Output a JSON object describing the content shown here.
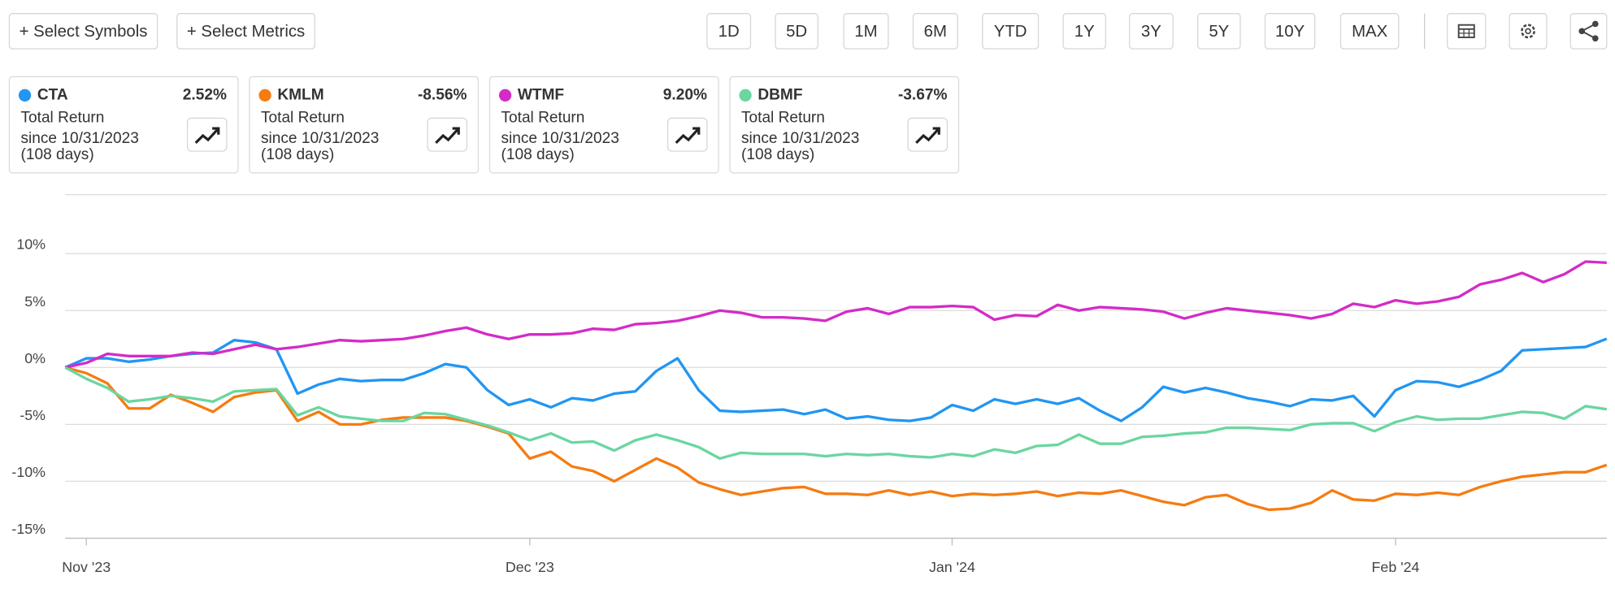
{
  "toolbar": {
    "select_symbols": "+ Select Symbols",
    "select_metrics": "+ Select Metrics",
    "periods": [
      "1D",
      "5D",
      "1M",
      "6M",
      "YTD",
      "1Y",
      "3Y",
      "5Y",
      "10Y",
      "MAX"
    ]
  },
  "cards": [
    {
      "value": "2.52%",
      "metric": "Total Return",
      "since": "since 10/31/2023",
      "days": "(108 days)"
    },
    {
      "value": "-8.56%",
      "metric": "Total Return",
      "since": "since 10/31/2023",
      "days": "(108 days)"
    },
    {
      "value": "9.20%",
      "metric": "Total Return",
      "since": "since 10/31/2023",
      "days": "(108 days)"
    },
    {
      "value": "-3.67%",
      "metric": "Total Return",
      "since": "since 10/31/2023",
      "days": "(108 days)"
    }
  ],
  "chart_data": {
    "type": "line",
    "categories": [
      null,
      "Nov '23",
      null,
      null,
      null,
      null,
      null,
      null,
      null,
      null,
      null,
      null,
      null,
      null,
      null,
      null,
      null,
      null,
      null,
      null,
      null,
      null,
      "Dec '23",
      null,
      null,
      null,
      null,
      null,
      null,
      null,
      null,
      null,
      null,
      null,
      null,
      null,
      null,
      null,
      null,
      null,
      null,
      null,
      "Jan '24",
      null,
      null,
      null,
      null,
      null,
      null,
      null,
      null,
      null,
      null,
      null,
      null,
      null,
      null,
      null,
      null,
      null,
      null,
      null,
      null,
      "Feb '24",
      null,
      null,
      null,
      null,
      null,
      null,
      null,
      null,
      null,
      null
    ],
    "ylim": [
      -15,
      15
    ],
    "yticks": [
      {
        "value": -15,
        "label": "-15%"
      },
      {
        "value": -10,
        "label": "-10%"
      },
      {
        "value": -5,
        "label": "-5%"
      },
      {
        "value": 0,
        "label": "0%"
      },
      {
        "value": 5,
        "label": "5%"
      },
      {
        "value": 10,
        "label": "10%"
      }
    ],
    "grid": true,
    "series": [
      {
        "name": "CTA",
        "color": "#2196f3",
        "values": [
          0,
          0.8,
          0.8,
          0.5,
          0.7,
          1.0,
          1.2,
          1.3,
          2.4,
          2.2,
          1.6,
          -2.3,
          -1.5,
          -1.0,
          -1.2,
          -1.1,
          -1.1,
          -0.5,
          0.3,
          0.0,
          -2.0,
          -3.3,
          -2.8,
          -3.5,
          -2.7,
          -2.9,
          -2.3,
          -2.1,
          -0.3,
          0.8,
          -2.0,
          -3.8,
          -3.9,
          -3.8,
          -3.7,
          -4.1,
          -3.7,
          -4.5,
          -4.3,
          -4.6,
          -4.7,
          -4.4,
          -3.3,
          -3.8,
          -2.8,
          -3.2,
          -2.8,
          -3.2,
          -2.7,
          -3.8,
          -4.7,
          -3.5,
          -1.7,
          -2.2,
          -1.8,
          -2.2,
          -2.7,
          -3.0,
          -3.4,
          -2.8,
          -2.9,
          -2.5,
          -4.3,
          -2.0,
          -1.2,
          -1.3,
          -1.7,
          -1.1,
          -0.3,
          1.5,
          1.6,
          1.7,
          1.8,
          2.52
        ]
      },
      {
        "name": "KMLM",
        "color": "#f57c12",
        "values": [
          0,
          -0.5,
          -1.4,
          -3.6,
          -3.6,
          -2.4,
          -3.1,
          -3.9,
          -2.6,
          -2.2,
          -2.0,
          -4.7,
          -3.9,
          -5.0,
          -5.0,
          -4.6,
          -4.4,
          -4.4,
          -4.4,
          -4.7,
          -5.2,
          -5.8,
          -8.0,
          -7.4,
          -8.7,
          -9.1,
          -10.0,
          -9.0,
          -8.0,
          -8.8,
          -10.1,
          -10.7,
          -11.2,
          -10.9,
          -10.6,
          -10.5,
          -11.1,
          -11.1,
          -11.2,
          -10.8,
          -11.2,
          -10.9,
          -11.3,
          -11.1,
          -11.2,
          -11.1,
          -10.9,
          -11.3,
          -11.0,
          -11.1,
          -10.8,
          -11.3,
          -11.8,
          -12.1,
          -11.4,
          -11.2,
          -12.0,
          -12.5,
          -12.4,
          -11.9,
          -10.8,
          -11.6,
          -11.7,
          -11.1,
          -11.2,
          -11.0,
          -11.2,
          -10.5,
          -10.0,
          -9.6,
          -9.4,
          -9.2,
          -9.2,
          -8.56
        ]
      },
      {
        "name": "WTMF",
        "color": "#d42bc6",
        "values": [
          0,
          0.4,
          1.2,
          1.0,
          1.0,
          1.0,
          1.3,
          1.2,
          1.6,
          2.0,
          1.6,
          1.8,
          2.1,
          2.4,
          2.3,
          2.4,
          2.5,
          2.8,
          3.2,
          3.5,
          2.9,
          2.5,
          2.9,
          2.9,
          3.0,
          3.4,
          3.3,
          3.8,
          3.9,
          4.1,
          4.5,
          5.0,
          4.8,
          4.4,
          4.4,
          4.3,
          4.1,
          4.9,
          5.2,
          4.7,
          5.3,
          5.3,
          5.4,
          5.3,
          4.2,
          4.6,
          4.5,
          5.5,
          5.0,
          5.3,
          5.2,
          5.1,
          4.9,
          4.3,
          4.8,
          5.2,
          5.0,
          4.8,
          4.6,
          4.3,
          4.7,
          5.6,
          5.3,
          5.9,
          5.6,
          5.8,
          6.2,
          7.3,
          7.7,
          8.3,
          7.5,
          8.2,
          9.3,
          9.2
        ]
      },
      {
        "name": "DBMF",
        "color": "#6bd6a0",
        "values": [
          0,
          -1.0,
          -1.8,
          -3.0,
          -2.8,
          -2.5,
          -2.7,
          -3.0,
          -2.1,
          -2.0,
          -1.9,
          -4.2,
          -3.5,
          -4.3,
          -4.5,
          -4.7,
          -4.7,
          -4.0,
          -4.1,
          -4.6,
          -5.1,
          -5.7,
          -6.4,
          -5.8,
          -6.6,
          -6.5,
          -7.3,
          -6.4,
          -5.9,
          -6.4,
          -7.0,
          -8.0,
          -7.5,
          -7.6,
          -7.6,
          -7.6,
          -7.8,
          -7.6,
          -7.7,
          -7.6,
          -7.8,
          -7.9,
          -7.6,
          -7.8,
          -7.2,
          -7.5,
          -6.9,
          -6.8,
          -5.9,
          -6.7,
          -6.7,
          -6.1,
          -6.0,
          -5.8,
          -5.7,
          -5.3,
          -5.3,
          -5.4,
          -5.5,
          -5.0,
          -4.9,
          -4.9,
          -5.6,
          -4.8,
          -4.3,
          -4.6,
          -4.5,
          -4.5,
          -4.2,
          -3.9,
          -4.0,
          -4.5,
          -3.4,
          -3.67
        ]
      }
    ]
  }
}
